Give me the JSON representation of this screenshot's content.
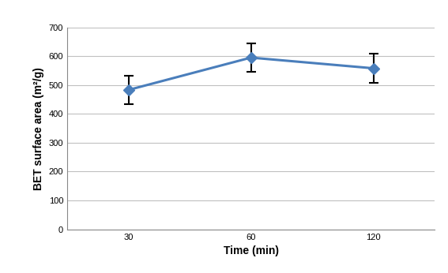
{
  "chart_data": {
    "type": "line",
    "x_label": "Time (min)",
    "y_label": "BET surface area (m²/g)",
    "categories": [
      "30",
      "60",
      "120"
    ],
    "values": [
      483,
      595,
      558
    ],
    "errors": [
      48,
      50,
      50
    ],
    "color": "#4a7ebb",
    "marker": "diamond",
    "line_style": "solid",
    "ylim": [
      0,
      700
    ],
    "yticks": [
      0,
      100,
      200,
      300,
      400,
      500,
      600,
      700
    ],
    "grid": true
  }
}
